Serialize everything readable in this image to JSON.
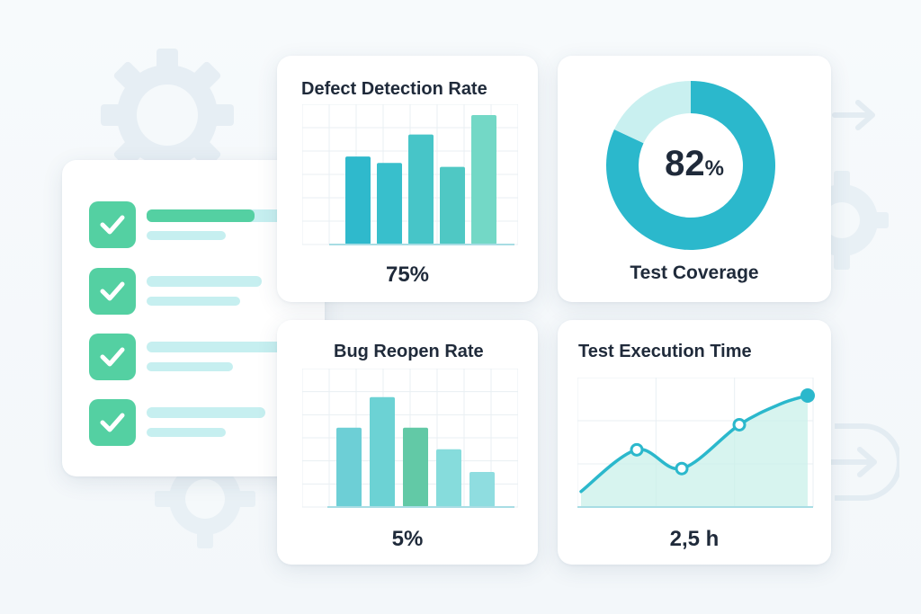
{
  "colors": {
    "teal": "#2bb8cc",
    "teal_light": "#c4eff0",
    "green": "#54d0a2",
    "mint": "#7cd9c6",
    "checkbox": "#54d0a2"
  },
  "icons": {
    "gear": "gear-icon",
    "arrow": "arrow-right-icon",
    "check": "checkmark-icon"
  },
  "checklist": {
    "items": [
      {
        "checked": true
      },
      {
        "checked": true
      },
      {
        "checked": true
      },
      {
        "checked": true
      }
    ],
    "progress": 0.72
  },
  "cards": {
    "defect": {
      "title": "Defect Detection Rate",
      "value": "75%"
    },
    "coverage": {
      "title": "Test Coverage",
      "value_number": "82",
      "value_unit": "%"
    },
    "reopen": {
      "title": "Bug Reopen Rate",
      "value": "5%"
    },
    "execution": {
      "title": "Test Execution Time",
      "value": "2,5 h"
    }
  },
  "chart_data": [
    {
      "type": "bar",
      "values": [
        0.68,
        0.63,
        0.85,
        0.6,
        1.0
      ],
      "ylim": [
        0,
        1
      ]
    },
    {
      "type": "pie",
      "values": [
        82,
        18
      ],
      "labels": [
        "",
        ""
      ]
    },
    {
      "type": "bar",
      "values": [
        0.7,
        0.97,
        0.7,
        0.51,
        0.31
      ],
      "ylim": [
        0,
        1
      ]
    },
    {
      "type": "area",
      "x": [
        0,
        1,
        2,
        3,
        4,
        5
      ],
      "values": [
        0.08,
        0.48,
        0.3,
        0.72,
        0.92,
        1.0
      ],
      "markers": [
        1,
        2,
        3,
        5
      ],
      "ylim": [
        0,
        1
      ]
    }
  ]
}
